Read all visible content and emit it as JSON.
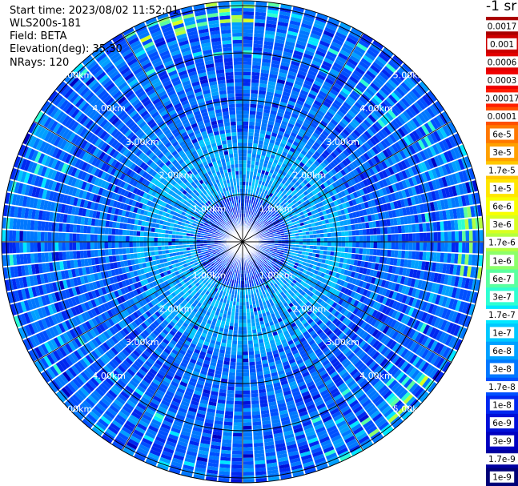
{
  "info": {
    "start_time": "Start time: 2023/08/02 11:52:01",
    "device": "WLS200s-181",
    "field": "Field: BETA",
    "elevation": "Elevation(deg): 35.30",
    "nrays": "NRays: 120"
  },
  "chart_data": {
    "type": "heatmap",
    "projection": "polar-ppi",
    "field": "BETA",
    "elevation_deg": 35.3,
    "n_rays": 120,
    "range_ring_labels": [
      "1.00km",
      "2.00km",
      "3.00km",
      "4.00km",
      "5.00km"
    ],
    "range_rings_km": [
      1,
      2,
      3,
      4,
      5
    ],
    "colorbar": {
      "unit": "-1 sr",
      "tick_labels": [
        "0.0017",
        "0.001",
        "0.0006",
        "0.0003",
        "0.00017",
        "0.0001",
        "6e-5",
        "3e-5",
        "1.7e-5",
        "1e-5",
        "6e-6",
        "3e-6",
        "1.7e-6",
        "1e-6",
        "6e-7",
        "3e-7",
        "1.7e-7",
        "1e-7",
        "6e-8",
        "3e-8",
        "1.7e-8",
        "1e-8",
        "6e-9",
        "3e-9",
        "1.7e-9",
        "1e-9"
      ],
      "colors": [
        "#aa0000",
        "#cc0000",
        "#e20000",
        "#f00000",
        "#ff1e00",
        "#ff5000",
        "#ff7800",
        "#ffa000",
        "#ffc800",
        "#ffe600",
        "#f8ff00",
        "#d8ff20",
        "#b4ff40",
        "#8cff6a",
        "#5affa0",
        "#2effd2",
        "#00e8ff",
        "#00c8ff",
        "#00a0ff",
        "#0078ff",
        "#0050ff",
        "#0028f0",
        "#0010d8",
        "#0000c0",
        "#0000a0",
        "#000078"
      ]
    }
  }
}
